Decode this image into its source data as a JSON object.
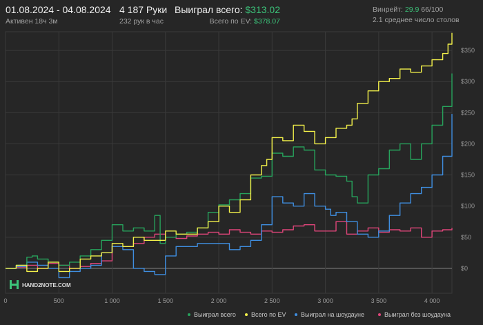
{
  "header": {
    "date_range": "01.08.2024 - 04.08.2024",
    "active": "Активен 18ч 3м",
    "hands": "4 187 Руки",
    "hands_per_hour": "232 рук в час",
    "won_total_label": "Выиграл всего:",
    "won_total_value": "$313.02",
    "ev_label": "Всего по EV:",
    "ev_value": "$378.07",
    "winrate_label": "Винрейт:",
    "winrate_value": "29.9",
    "winrate_suffix": "66/100",
    "avg_tables": "2.1 среднее число столов"
  },
  "logo": {
    "text": "HAND2NOTE.COM",
    "icon": "h2n-logo-icon"
  },
  "colors": {
    "background": "#262626",
    "won_total": "#27a35c",
    "ev": "#f2f04a",
    "showdown": "#3f8ee0",
    "non_showdown": "#e0457a",
    "grid": "#3a3a3a",
    "zero_line": "#8a8a8a"
  },
  "chart_data": {
    "type": "line",
    "xlim": [
      0,
      4187
    ],
    "ylim": [
      -40,
      380
    ],
    "x_ticks": [
      0,
      500,
      1000,
      1500,
      2000,
      2500,
      3000,
      3500,
      4000
    ],
    "x_tick_labels": [
      "0",
      "500",
      "1 000",
      "1 500",
      "2 000",
      "2 500",
      "3 000",
      "3 500",
      "4 000"
    ],
    "y_ticks": [
      0,
      50,
      100,
      150,
      200,
      250,
      300,
      350
    ],
    "y_tick_labels": [
      "$0",
      "$50",
      "$100",
      "$150",
      "$200",
      "$250",
      "$300",
      "$350"
    ],
    "grid": true,
    "legend_position": "bottom-right",
    "series": [
      {
        "name": "Выиграл всего",
        "color": "#27a35c",
        "x": [
          0,
          100,
          200,
          250,
          300,
          400,
          500,
          600,
          700,
          800,
          900,
          1000,
          1050,
          1100,
          1200,
          1300,
          1400,
          1450,
          1500,
          1600,
          1700,
          1800,
          1900,
          2000,
          2100,
          2200,
          2300,
          2400,
          2500,
          2600,
          2700,
          2800,
          2900,
          3000,
          3100,
          3200,
          3250,
          3300,
          3400,
          3500,
          3600,
          3700,
          3800,
          3900,
          4000,
          4100,
          4187
        ],
        "values": [
          0,
          5,
          18,
          20,
          15,
          10,
          5,
          10,
          20,
          30,
          45,
          70,
          70,
          60,
          65,
          60,
          85,
          40,
          50,
          55,
          58,
          65,
          90,
          102,
          110,
          120,
          145,
          148,
          185,
          180,
          195,
          190,
          158,
          150,
          148,
          140,
          115,
          105,
          150,
          160,
          190,
          200,
          175,
          200,
          230,
          260,
          313
        ]
      },
      {
        "name": "Всего по EV",
        "color": "#f2f04a",
        "x": [
          0,
          100,
          200,
          300,
          400,
          500,
          600,
          700,
          800,
          900,
          1000,
          1100,
          1200,
          1300,
          1400,
          1500,
          1600,
          1700,
          1800,
          1900,
          2000,
          2100,
          2200,
          2300,
          2400,
          2450,
          2500,
          2600,
          2700,
          2800,
          2900,
          3000,
          3100,
          3200,
          3250,
          3300,
          3400,
          3500,
          3600,
          3700,
          3800,
          3900,
          4000,
          4100,
          4150,
          4187
        ],
        "values": [
          0,
          5,
          -5,
          0,
          10,
          -5,
          0,
          15,
          20,
          25,
          40,
          35,
          50,
          45,
          45,
          60,
          55,
          55,
          65,
          75,
          100,
          90,
          110,
          150,
          165,
          175,
          210,
          205,
          230,
          220,
          200,
          210,
          225,
          230,
          240,
          265,
          285,
          300,
          305,
          320,
          315,
          325,
          335,
          345,
          360,
          378
        ]
      },
      {
        "name": "Выиграл на шоудауне",
        "color": "#3f8ee0",
        "x": [
          0,
          100,
          200,
          300,
          400,
          500,
          600,
          700,
          800,
          900,
          1000,
          1100,
          1200,
          1300,
          1400,
          1500,
          1600,
          1700,
          1800,
          1900,
          2000,
          2100,
          2200,
          2300,
          2400,
          2500,
          2600,
          2700,
          2800,
          2900,
          3000,
          3050,
          3100,
          3200,
          3300,
          3400,
          3500,
          3600,
          3700,
          3800,
          3900,
          4000,
          4100,
          4187
        ],
        "values": [
          0,
          3,
          10,
          5,
          0,
          -15,
          -5,
          0,
          5,
          25,
          35,
          30,
          0,
          -5,
          -10,
          20,
          35,
          35,
          40,
          40,
          40,
          30,
          35,
          45,
          70,
          115,
          105,
          100,
          120,
          100,
          95,
          85,
          90,
          75,
          55,
          50,
          60,
          85,
          105,
          120,
          130,
          150,
          180,
          248
        ]
      },
      {
        "name": "Выиграл без шоудауна",
        "color": "#e0457a",
        "x": [
          0,
          100,
          200,
          300,
          400,
          500,
          600,
          700,
          800,
          900,
          1000,
          1100,
          1200,
          1300,
          1400,
          1500,
          1600,
          1700,
          1800,
          1900,
          2000,
          2100,
          2200,
          2300,
          2400,
          2500,
          2600,
          2700,
          2800,
          2900,
          3000,
          3100,
          3200,
          3300,
          3400,
          3500,
          3600,
          3700,
          3800,
          3900,
          4000,
          4100,
          4187
        ],
        "values": [
          0,
          2,
          5,
          0,
          8,
          5,
          0,
          3,
          8,
          12,
          35,
          35,
          40,
          50,
          55,
          50,
          48,
          52,
          55,
          58,
          55,
          62,
          58,
          55,
          60,
          58,
          62,
          68,
          70,
          60,
          60,
          75,
          55,
          60,
          65,
          58,
          62,
          60,
          65,
          50,
          60,
          62,
          65
        ]
      }
    ]
  }
}
